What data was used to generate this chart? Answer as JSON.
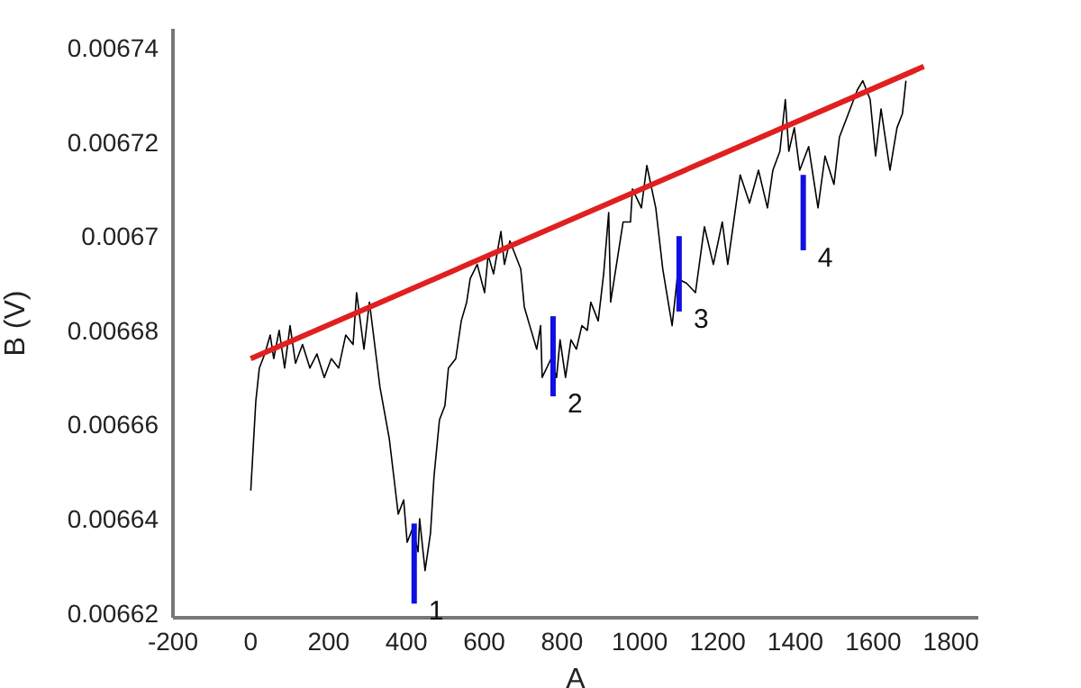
{
  "chart_data": {
    "type": "line",
    "xlabel": "A",
    "ylabel": "B (V)",
    "xlim": [
      -200,
      1870
    ],
    "xticks": [
      -200,
      0,
      200,
      400,
      600,
      800,
      1000,
      1200,
      1400,
      1600,
      1800
    ],
    "ylim": [
      0.006619,
      0.006744
    ],
    "yticks": [
      0.00662,
      0.00664,
      0.00666,
      0.00668,
      0.0067,
      0.00672,
      0.00674
    ],
    "series": [
      {
        "color": "#000000",
        "x": [
          0,
          13,
          22,
          36,
          50,
          59,
          73,
          87,
          101,
          115,
          133,
          152,
          170,
          189,
          207,
          226,
          244,
          263,
          272,
          291,
          305,
          323,
          332,
          356,
          369,
          379,
          393,
          402,
          416,
          430,
          434,
          448,
          462,
          471,
          485,
          499,
          508,
          527,
          541,
          555,
          564,
          582,
          601,
          610,
          624,
          643,
          652,
          666,
          694,
          703,
          717,
          735,
          745,
          749,
          772,
          786,
          795,
          809,
          823,
          837,
          851,
          865,
          874,
          893,
          907,
          920,
          925,
          957,
          976,
          981,
          1004,
          1018,
          1041,
          1059,
          1083,
          1096,
          1120,
          1143,
          1166,
          1189,
          1212,
          1226,
          1258,
          1282,
          1305,
          1328,
          1342,
          1360,
          1374,
          1383,
          1397,
          1411,
          1434,
          1458,
          1476,
          1499,
          1513,
          1536,
          1559,
          1573,
          1592,
          1606,
          1620,
          1643,
          1661,
          1675,
          1684
        ],
        "values": [
          0.006646,
          0.006665,
          0.006672,
          0.006675,
          0.006679,
          0.006674,
          0.00668,
          0.006672,
          0.006681,
          0.006673,
          0.006677,
          0.006672,
          0.006675,
          0.00667,
          0.006674,
          0.006672,
          0.006679,
          0.006677,
          0.006688,
          0.006676,
          0.006686,
          0.006674,
          0.006668,
          0.006657,
          0.006648,
          0.006641,
          0.006644,
          0.006635,
          0.006638,
          0.006633,
          0.00664,
          0.006629,
          0.006637,
          0.006649,
          0.006661,
          0.006664,
          0.006672,
          0.006674,
          0.006682,
          0.006686,
          0.006691,
          0.006694,
          0.006688,
          0.006696,
          0.006692,
          0.006701,
          0.006694,
          0.006699,
          0.006693,
          0.006685,
          0.006681,
          0.006676,
          0.006681,
          0.00667,
          0.006674,
          0.00667,
          0.006678,
          0.00667,
          0.006678,
          0.006676,
          0.006681,
          0.00668,
          0.006686,
          0.006682,
          0.006692,
          0.006705,
          0.006686,
          0.006703,
          0.006703,
          0.00671,
          0.006706,
          0.006715,
          0.006706,
          0.006693,
          0.006681,
          0.006691,
          0.00669,
          0.006688,
          0.006702,
          0.006694,
          0.006703,
          0.006694,
          0.006713,
          0.006707,
          0.006714,
          0.006706,
          0.006714,
          0.006718,
          0.006729,
          0.006718,
          0.006723,
          0.006714,
          0.006719,
          0.006706,
          0.006717,
          0.006711,
          0.006721,
          0.006726,
          0.006731,
          0.006733,
          0.006729,
          0.006717,
          0.006727,
          0.006714,
          0.006723,
          0.006726,
          0.006733
        ]
      },
      {
        "color": "#e02020",
        "x": [
          0,
          1730
        ],
        "values": [
          0.006674,
          0.006736
        ]
      },
      {
        "color": "#1010e0",
        "x": [
          420,
          420
        ],
        "values": [
          0.006639,
          0.006622
        ]
      },
      {
        "color": "#1010e0",
        "x": [
          777,
          777
        ],
        "values": [
          0.006683,
          0.006666
        ]
      },
      {
        "color": "#1010e0",
        "x": [
          1101,
          1101
        ],
        "values": [
          0.0067,
          0.006684
        ]
      },
      {
        "color": "#1010e0",
        "x": [
          1420,
          1420
        ],
        "values": [
          0.006713,
          0.006697
        ]
      }
    ],
    "annotations": [
      {
        "text": "1",
        "x": 420,
        "y": 0.006622
      },
      {
        "text": "2",
        "x": 777,
        "y": 0.006666
      },
      {
        "text": "3",
        "x": 1101,
        "y": 0.006684
      },
      {
        "text": "4",
        "x": 1420,
        "y": 0.006697
      }
    ]
  }
}
